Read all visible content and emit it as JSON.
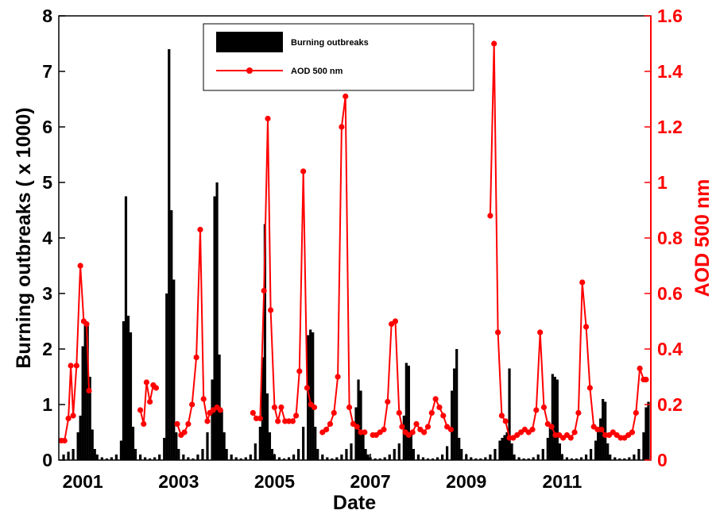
{
  "chart_data": {
    "type": "bar+line",
    "xlabel": "Date",
    "ylabel_left": "Burning outbreaks ( x 1000)",
    "ylabel_right": "AOD 500 nm",
    "x_range": [
      2000.5,
      2012.85
    ],
    "xticks": [
      2001,
      2003,
      2005,
      2007,
      2009,
      2011
    ],
    "xtick_labels": [
      "2001",
      "2003",
      "2005",
      "2007",
      "2009",
      "2011"
    ],
    "ylim_left": [
      0,
      8
    ],
    "yticks_left": [
      0,
      1,
      2,
      3,
      4,
      5,
      6,
      7,
      8
    ],
    "ytick_labels_left": [
      "0",
      "1",
      "2",
      "3",
      "4",
      "5",
      "6",
      "7",
      "8"
    ],
    "ylim_right": [
      0,
      1.6
    ],
    "yticks_right": [
      0,
      0.2,
      0.4,
      0.6,
      0.8,
      1,
      1.2,
      1.4,
      1.6
    ],
    "ytick_labels_right": [
      "0",
      "0.2",
      "0.4",
      "0.6",
      "0.8",
      "1",
      "1.2",
      "1.4",
      "1.6"
    ],
    "legend_position": "top-center",
    "grid": false,
    "colors": {
      "bars": "#000000",
      "aod": "#ff0000",
      "right_axis": "#ff0000"
    },
    "series": [
      {
        "name": "Burning outbreaks",
        "axis": "left",
        "kind": "bar",
        "x": [
          2000.6,
          2000.7,
          2000.8,
          2000.9,
          2000.95,
          2001.0,
          2001.05,
          2001.1,
          2001.15,
          2001.2,
          2001.25,
          2001.3,
          2001.4,
          2001.5,
          2001.6,
          2001.7,
          2001.8,
          2001.85,
          2001.9,
          2001.95,
          2002.0,
          2002.05,
          2002.1,
          2002.2,
          2002.3,
          2002.4,
          2002.5,
          2002.6,
          2002.7,
          2002.75,
          2002.8,
          2002.85,
          2002.9,
          2002.95,
          2003.0,
          2003.1,
          2003.2,
          2003.3,
          2003.4,
          2003.5,
          2003.6,
          2003.7,
          2003.75,
          2003.8,
          2003.85,
          2003.9,
          2003.95,
          2004.0,
          2004.1,
          2004.2,
          2004.3,
          2004.4,
          2004.5,
          2004.6,
          2004.7,
          2004.75,
          2004.8,
          2004.85,
          2004.9,
          2004.95,
          2005.0,
          2005.1,
          2005.2,
          2005.3,
          2005.4,
          2005.5,
          2005.6,
          2005.7,
          2005.75,
          2005.8,
          2005.85,
          2005.9,
          2006.0,
          2006.1,
          2006.2,
          2006.3,
          2006.4,
          2006.5,
          2006.6,
          2006.7,
          2006.75,
          2006.8,
          2006.85,
          2006.9,
          2006.95,
          2007.0,
          2007.1,
          2007.2,
          2007.3,
          2007.4,
          2007.5,
          2007.6,
          2007.7,
          2007.75,
          2007.8,
          2007.85,
          2007.9,
          2008.0,
          2008.1,
          2008.2,
          2008.3,
          2008.4,
          2008.5,
          2008.6,
          2008.7,
          2008.75,
          2008.8,
          2008.85,
          2008.9,
          2009.0,
          2009.1,
          2009.2,
          2009.3,
          2009.4,
          2009.5,
          2009.6,
          2009.7,
          2009.75,
          2009.8,
          2009.85,
          2009.9,
          2009.95,
          2010.0,
          2010.1,
          2010.2,
          2010.3,
          2010.4,
          2010.5,
          2010.6,
          2010.7,
          2010.75,
          2010.8,
          2010.85,
          2010.9,
          2010.95,
          2011.0,
          2011.1,
          2011.2,
          2011.3,
          2011.4,
          2011.5,
          2011.6,
          2011.7,
          2011.75,
          2011.8,
          2011.85,
          2011.9,
          2011.95,
          2012.0,
          2012.1,
          2012.2,
          2012.3,
          2012.4,
          2012.5,
          2012.6,
          2012.7,
          2012.75,
          2012.8
        ],
        "values": [
          0.1,
          0.15,
          0.2,
          0.5,
          0.8,
          2.05,
          2.45,
          2.45,
          1.5,
          0.55,
          0.2,
          0.1,
          0.05,
          0.03,
          0.05,
          0.1,
          0.35,
          2.5,
          4.75,
          2.6,
          2.3,
          0.6,
          0.2,
          0.1,
          0.05,
          0.03,
          0.05,
          0.1,
          0.4,
          3.0,
          7.4,
          4.5,
          3.25,
          0.5,
          0.2,
          0.1,
          0.05,
          0.03,
          0.1,
          0.2,
          0.5,
          1.45,
          4.75,
          5.0,
          1.9,
          0.9,
          0.5,
          0.2,
          0.1,
          0.05,
          0.03,
          0.05,
          0.1,
          0.3,
          0.6,
          1.85,
          4.25,
          1.2,
          0.5,
          0.2,
          0.1,
          0.05,
          0.03,
          0.05,
          0.1,
          0.2,
          0.6,
          2.25,
          2.35,
          2.3,
          0.6,
          0.2,
          0.1,
          0.05,
          0.03,
          0.05,
          0.1,
          0.2,
          0.3,
          0.95,
          1.45,
          1.25,
          0.5,
          0.2,
          0.1,
          0.05,
          0.03,
          0.03,
          0.05,
          0.1,
          0.2,
          0.3,
          0.8,
          1.75,
          1.7,
          0.5,
          0.2,
          0.1,
          0.05,
          0.03,
          0.03,
          0.05,
          0.1,
          0.25,
          1.25,
          1.65,
          2.0,
          0.4,
          0.2,
          0.1,
          0.05,
          0.03,
          0.03,
          0.05,
          0.1,
          0.2,
          0.35,
          0.4,
          0.45,
          0.5,
          1.65,
          0.3,
          0.1,
          0.05,
          0.03,
          0.03,
          0.05,
          0.1,
          0.2,
          0.4,
          0.6,
          1.55,
          1.5,
          1.45,
          0.3,
          0.1,
          0.05,
          0.03,
          0.03,
          0.05,
          0.1,
          0.2,
          0.35,
          0.5,
          0.75,
          1.1,
          1.05,
          0.3,
          0.1,
          0.05,
          0.03,
          0.03,
          0.05,
          0.1,
          0.2,
          0.5,
          0.95,
          1.05
        ]
      },
      {
        "name": "AOD 500 nm",
        "axis": "right",
        "kind": "line",
        "segments": [
          {
            "x": [
              2000.55,
              2000.62,
              2000.7,
              2000.75,
              2000.8,
              2000.87,
              2000.95,
              2001.02,
              2001.08,
              2001.13
            ],
            "y": [
              0.07,
              0.07,
              0.15,
              0.34,
              0.16,
              0.34,
              0.7,
              0.5,
              0.49,
              0.25
            ]
          },
          {
            "x": [
              2002.2,
              2002.27,
              2002.33,
              2002.4,
              2002.47,
              2002.53
            ],
            "y": [
              0.18,
              0.13,
              0.28,
              0.21,
              0.27,
              0.26
            ]
          },
          {
            "x": [
              2002.97,
              2003.05,
              2003.12,
              2003.2,
              2003.28,
              2003.37,
              2003.45,
              2003.52,
              2003.6,
              2003.65,
              2003.72,
              2003.8,
              2003.87
            ],
            "y": [
              0.13,
              0.09,
              0.1,
              0.13,
              0.2,
              0.37,
              0.83,
              0.22,
              0.14,
              0.17,
              0.18,
              0.19,
              0.18
            ]
          },
          {
            "x": [
              2004.55,
              2004.62,
              2004.7,
              2004.78,
              2004.86,
              2004.92,
              2005.0,
              2005.07,
              2005.14,
              2005.22,
              2005.3,
              2005.38,
              2005.45,
              2005.52,
              2005.6,
              2005.68,
              2005.76,
              2005.83
            ],
            "y": [
              0.17,
              0.15,
              0.15,
              0.61,
              1.23,
              0.54,
              0.19,
              0.14,
              0.19,
              0.14,
              0.14,
              0.14,
              0.16,
              0.32,
              1.04,
              0.26,
              0.2,
              0.19
            ]
          },
          {
            "x": [
              2006.0,
              2006.08,
              2006.16,
              2006.24,
              2006.32,
              2006.4,
              2006.48,
              2006.56,
              2006.64,
              2006.72,
              2006.8,
              2006.88
            ],
            "y": [
              0.1,
              0.11,
              0.13,
              0.17,
              0.3,
              1.2,
              1.31,
              0.19,
              0.13,
              0.12,
              0.1,
              0.1
            ]
          },
          {
            "x": [
              2007.05,
              2007.12,
              2007.2,
              2007.28,
              2007.36,
              2007.44,
              2007.52,
              2007.6,
              2007.66,
              2007.73,
              2007.8,
              2007.88,
              2007.96,
              2008.04,
              2008.12,
              2008.2,
              2008.28,
              2008.36,
              2008.44,
              2008.52,
              2008.6,
              2008.68
            ],
            "y": [
              0.09,
              0.09,
              0.1,
              0.11,
              0.21,
              0.49,
              0.5,
              0.17,
              0.12,
              0.1,
              0.09,
              0.1,
              0.13,
              0.11,
              0.1,
              0.12,
              0.17,
              0.22,
              0.19,
              0.16,
              0.12,
              0.11
            ]
          },
          {
            "x": [
              2009.5,
              2009.58,
              2009.66,
              2009.74,
              2009.82,
              2009.9,
              2009.98,
              2010.06,
              2010.14,
              2010.22,
              2010.3,
              2010.38,
              2010.46,
              2010.54,
              2010.62,
              2010.7,
              2010.78,
              2010.86,
              2010.94,
              2011.02,
              2011.1,
              2011.18,
              2011.26,
              2011.34,
              2011.42,
              2011.5,
              2011.58,
              2011.66,
              2011.74,
              2011.82,
              2011.9,
              2011.98,
              2012.06,
              2012.14,
              2012.22,
              2012.3,
              2012.38,
              2012.46,
              2012.54,
              2012.62,
              2012.7,
              2012.75
            ],
            "y": [
              0.88,
              1.5,
              0.46,
              0.16,
              0.14,
              0.08,
              0.08,
              0.09,
              0.1,
              0.11,
              0.1,
              0.11,
              0.18,
              0.46,
              0.19,
              0.13,
              0.12,
              0.09,
              0.09,
              0.08,
              0.09,
              0.08,
              0.1,
              0.17,
              0.64,
              0.48,
              0.26,
              0.12,
              0.11,
              0.11,
              0.09,
              0.09,
              0.1,
              0.09,
              0.08,
              0.08,
              0.09,
              0.1,
              0.17,
              0.33,
              0.29,
              0.29
            ]
          }
        ]
      }
    ]
  }
}
